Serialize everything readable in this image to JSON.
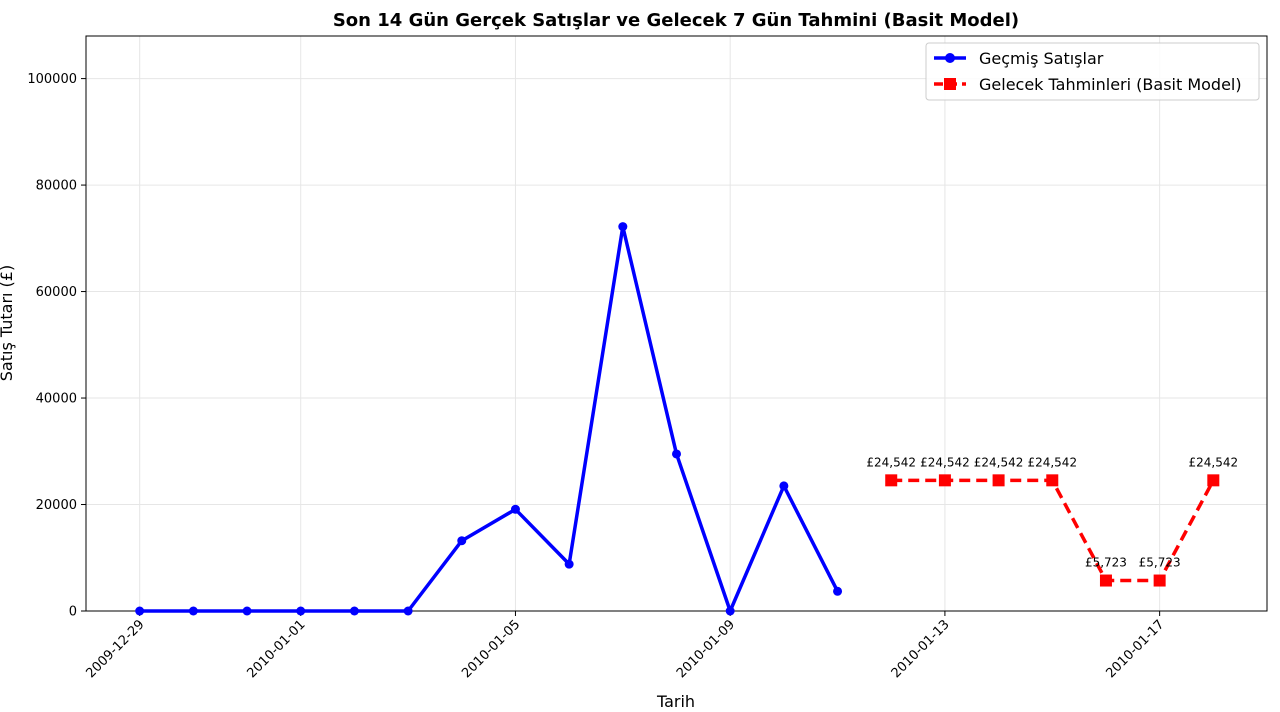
{
  "chart_data": {
    "type": "line",
    "title": "Son 14 Gün Gerçek Satışlar ve Gelecek 7 Gün Tahmini (Basit Model)",
    "xlabel": "Tarih",
    "ylabel": "Satış Tutarı (£)",
    "ylim": [
      0,
      108000
    ],
    "yticks": [
      0,
      20000,
      40000,
      60000,
      80000,
      100000
    ],
    "ytick_labels": [
      "0",
      "20000",
      "40000",
      "60000",
      "80000",
      "100000"
    ],
    "xlim": [
      "2009-12-28",
      "2010-01-19"
    ],
    "xticks": [
      "2009-12-29",
      "2010-01-01",
      "2010-01-05",
      "2010-01-09",
      "2010-01-13",
      "2010-01-17"
    ],
    "grid": true,
    "legend_position": "top-right",
    "series": [
      {
        "name": "Geçmiş Satışlar",
        "color": "#0000ff",
        "style": "solid",
        "marker": "circle",
        "x": [
          "2009-12-29",
          "2009-12-30",
          "2009-12-31",
          "2010-01-01",
          "2010-01-02",
          "2010-01-03",
          "2010-01-04",
          "2010-01-05",
          "2010-01-06",
          "2010-01-07",
          "2010-01-08",
          "2010-01-09",
          "2010-01-10",
          "2010-01-11"
        ],
        "values": [
          0,
          0,
          0,
          0,
          0,
          0,
          13200,
          19100,
          8800,
          72200,
          29500,
          0,
          23500,
          3700
        ]
      },
      {
        "name": "Gelecek Tahminleri (Basit Model)",
        "color": "#ff0000",
        "style": "dashed",
        "marker": "square",
        "x": [
          "2010-01-12",
          "2010-01-13",
          "2010-01-14",
          "2010-01-15",
          "2010-01-16",
          "2010-01-17",
          "2010-01-18"
        ],
        "values": [
          24542,
          24542,
          24542,
          24542,
          5723,
          5723,
          24542
        ],
        "labels": [
          "£24,542",
          "£24,542",
          "£24,542",
          "£24,542",
          "£5,723",
          "£5,723",
          "£24,542"
        ]
      }
    ]
  }
}
